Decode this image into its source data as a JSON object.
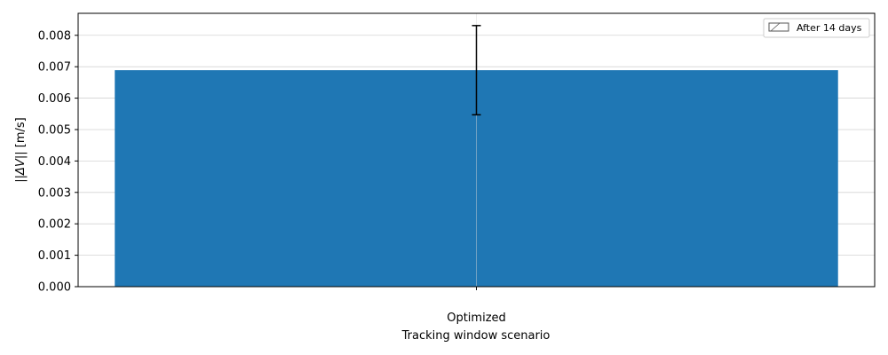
{
  "chart_data": {
    "type": "bar",
    "categories": [
      "Optimized"
    ],
    "values": [
      0.00689
    ],
    "error": [
      0.00142
    ],
    "xlabel": "Tracking window scenario",
    "ylabel_prefix": "||",
    "ylabel_symbol": "ΔV",
    "ylabel_suffix": "|| [m/s]",
    "ylim": [
      0,
      0.0087
    ],
    "yticks": [
      0.0,
      0.001,
      0.002,
      0.003,
      0.004,
      0.005,
      0.006,
      0.007,
      0.008
    ],
    "ytick_labels": [
      "0.000",
      "0.001",
      "0.002",
      "0.003",
      "0.004",
      "0.005",
      "0.006",
      "0.007",
      "0.008"
    ],
    "grid": true,
    "legend": {
      "position": "top-right",
      "entries": [
        {
          "label": "After 14 days",
          "style": "hatched"
        }
      ]
    },
    "colors": {
      "bar": "#1f77b4",
      "grid": "#d3d3d3",
      "errorbar": "#000000",
      "legend_edge": "#555555"
    }
  }
}
